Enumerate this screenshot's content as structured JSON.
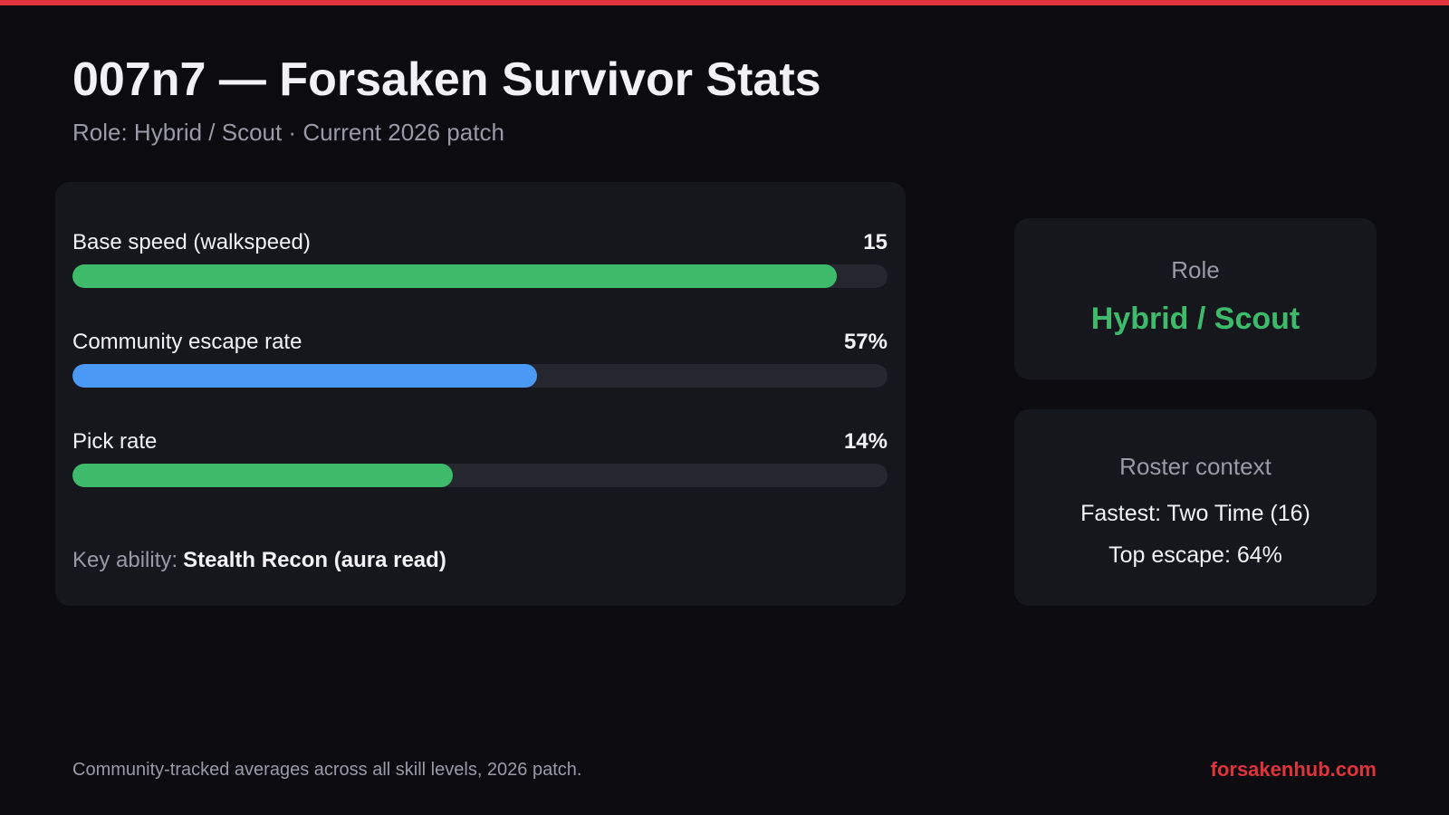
{
  "header": {
    "title": "007n7 — Forsaken Survivor Stats",
    "subtitle": "Role: Hybrid / Scout · Current 2026 patch"
  },
  "stats": [
    {
      "label": "Base speed (walkspeed)",
      "value": 15,
      "range": [
        0,
        16
      ],
      "color": "#3dba6a"
    },
    {
      "label": "Community escape rate",
      "value": 57,
      "value_label": "57%",
      "range": [
        0,
        100
      ],
      "color": "#4a9af5"
    },
    {
      "label": "Pick rate",
      "value": 14,
      "value_label": "14%",
      "range": [
        0,
        30
      ],
      "color": "#3dba6a"
    }
  ],
  "key_ability": {
    "label": "Key ability:",
    "value": "Stealth Recon (aura read)"
  },
  "role_card": {
    "title": "Role",
    "value": "Hybrid / Scout"
  },
  "roster_card": {
    "title": "Roster context",
    "lines": [
      "Fastest: Two Time (16)",
      "Top escape: 64%"
    ]
  },
  "footer": {
    "note": "Community-tracked averages across all skill levels, 2026 patch.",
    "site": "forsakenhub.com"
  }
}
